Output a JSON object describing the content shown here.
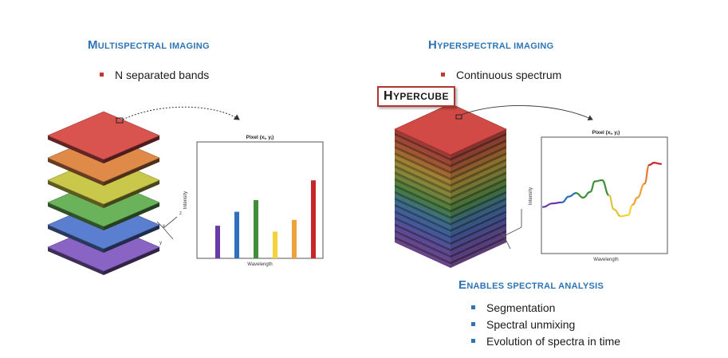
{
  "left": {
    "title_first": "M",
    "title_rest": "ultispectral imaging",
    "bullet": "N separated bands",
    "bullet_color": "#c0392b",
    "chart": {
      "pixel_label": "Pixel (xi, yi)",
      "xlabel": "Wavelength",
      "ylabel": "Intensity"
    },
    "layer_colors": [
      "#d9534f",
      "#e08a4a",
      "#c9c84a",
      "#6bb35a",
      "#5b7fd0",
      "#8a64c4"
    ],
    "axis_labels": {
      "z": "z",
      "x": "x",
      "y": "y"
    }
  },
  "right": {
    "title_first": "H",
    "title_rest": "yperspectral imaging",
    "bullet": "Continuous spectrum",
    "bullet_color": "#c0392b",
    "hypercube_first": "H",
    "hypercube_rest": "ypercube",
    "chart": {
      "pixel_label": "Pixel (xi, yi)",
      "xlabel": "Wavelength",
      "ylabel": "Intensity"
    },
    "analysis_title_first": "E",
    "analysis_title_rest": "nables spectral analysis",
    "analysis_bullet_color": "#2e74b5",
    "analysis_items": [
      "Segmentation",
      "Spectral unmixing",
      "Evolution of spectra in time"
    ]
  },
  "accent_color": "#2e74b5",
  "chart_data": [
    {
      "type": "bar",
      "categories": [
        "violet",
        "blue",
        "green",
        "yellow",
        "orange",
        "red"
      ],
      "values": [
        28,
        40,
        50,
        23,
        33,
        67
      ],
      "colors": [
        "#6a3aa8",
        "#2f6fc0",
        "#3f8f3a",
        "#f2d33b",
        "#f0a23a",
        "#c8262a"
      ],
      "title": "Pixel (xi, yi)",
      "xlabel": "Wavelength",
      "ylabel": "Intensity",
      "ylim": [
        0,
        100
      ]
    },
    {
      "type": "line",
      "x": [
        0,
        8,
        16,
        22,
        28,
        34,
        40,
        44,
        50,
        56,
        60,
        66,
        72,
        76,
        80,
        86,
        90,
        94,
        100
      ],
      "y": [
        40,
        43,
        44,
        49,
        52,
        48,
        53,
        62,
        63,
        50,
        38,
        32,
        33,
        42,
        48,
        60,
        76,
        78,
        77
      ],
      "colors": [
        "#6a3aa8",
        "#6a3aa8",
        "#2f6fc0",
        "#2f6fc0",
        "#3f8f3a",
        "#3f8f3a",
        "#3f8f3a",
        "#3f8f3a",
        "#3f8f3a",
        "#e0c43a",
        "#e0c43a",
        "#f2d33b",
        "#f2d33b",
        "#f0a23a",
        "#f0a23a",
        "#e57a33",
        "#c8262a",
        "#c8262a",
        "#c8262a"
      ],
      "title": "Pixel (xi, yi)",
      "xlabel": "Wavelength",
      "ylabel": "Intensity",
      "xlim": [
        0,
        100
      ],
      "ylim": [
        0,
        100
      ]
    }
  ]
}
